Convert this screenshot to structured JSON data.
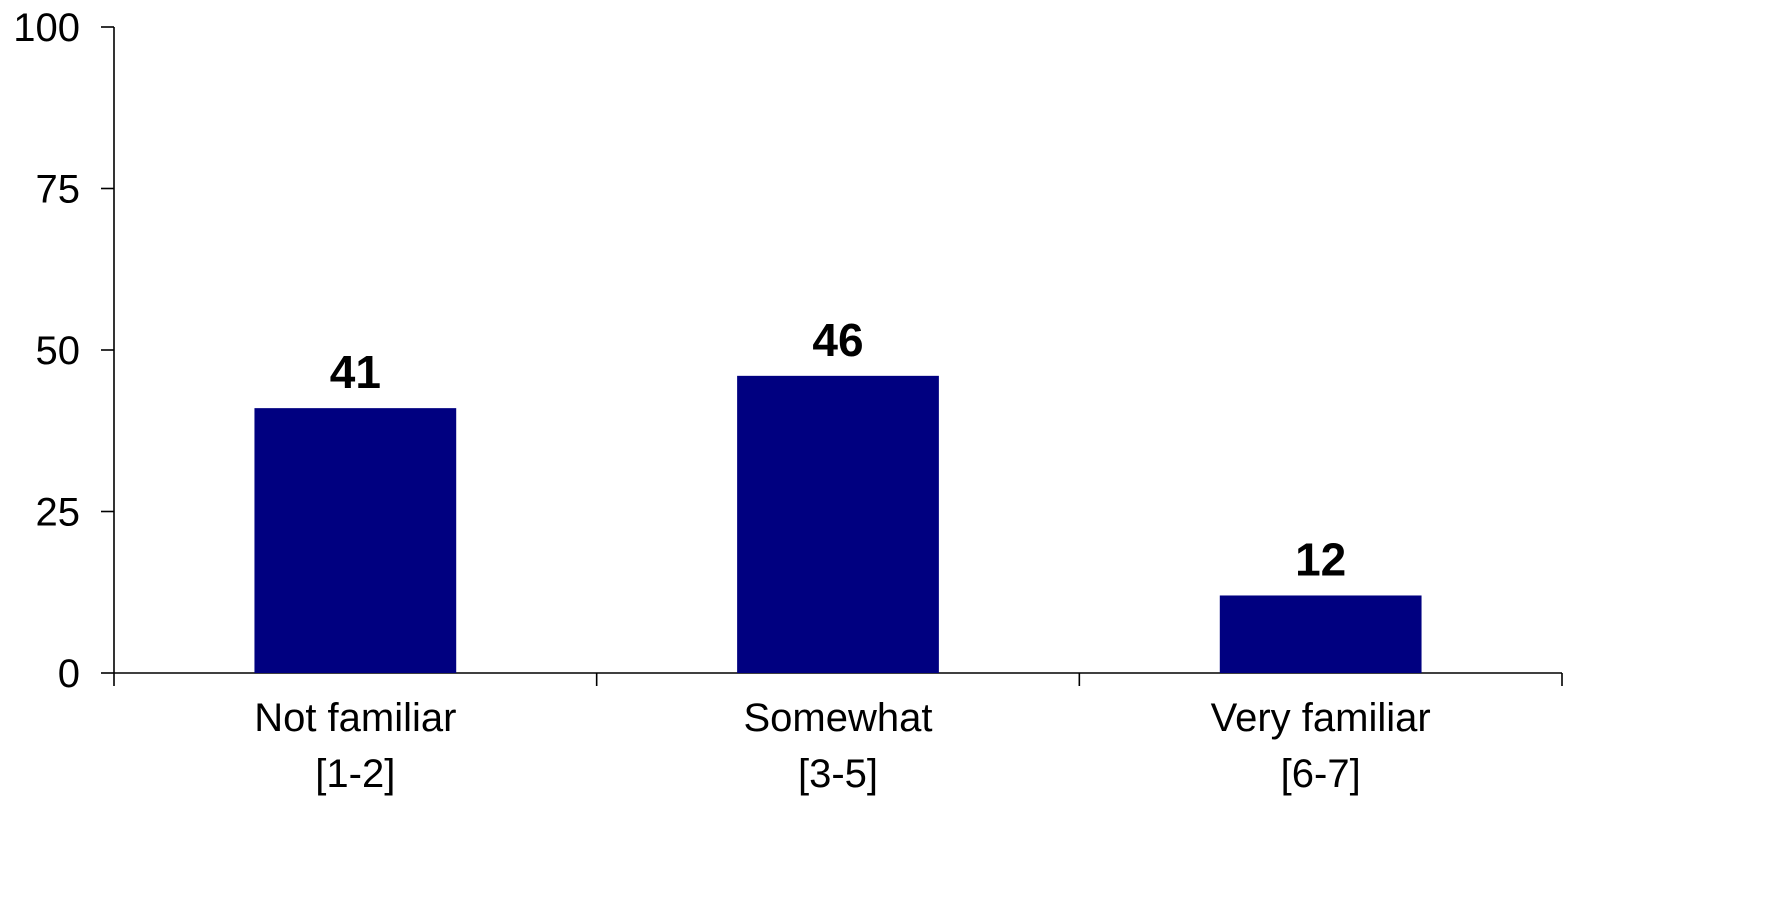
{
  "chart_data": {
    "type": "bar",
    "categories": [
      [
        "Not familiar",
        "[1-2]"
      ],
      [
        "Somewhat",
        "[3-5]"
      ],
      [
        "Very familiar",
        "[6-7]"
      ]
    ],
    "values": [
      41,
      46,
      12
    ],
    "data_labels": [
      "41",
      "46",
      "12"
    ],
    "ylim": [
      0,
      100
    ],
    "yticks": [
      0,
      25,
      50,
      75,
      100
    ],
    "ytick_labels": [
      "0",
      "25",
      "50",
      "75",
      "100"
    ],
    "title": "",
    "xlabel": "",
    "ylabel": "",
    "grid": false,
    "legend": "none",
    "bar_color": "#000080"
  }
}
